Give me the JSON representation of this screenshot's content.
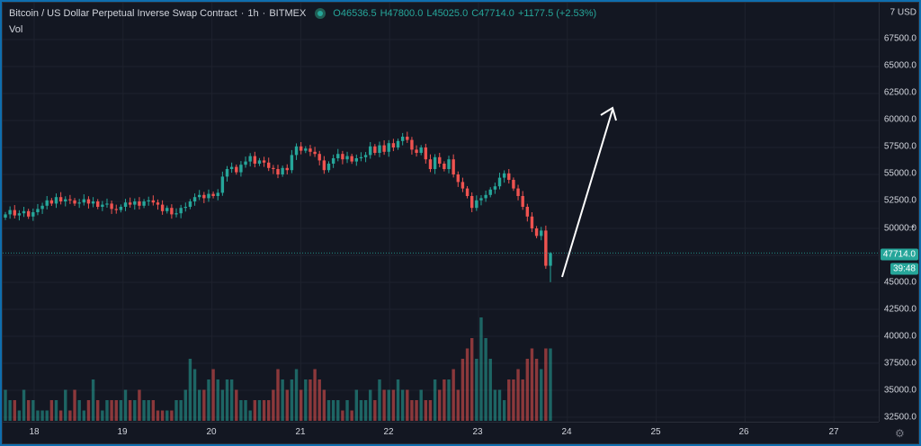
{
  "legend": {
    "title": "Bitcoin / US Dollar Perpetual Inverse Swap Contract",
    "interval": "1h",
    "exchange": "BITMEX",
    "open": "O46536.5",
    "high": "H47800.0",
    "low": "L45025.0",
    "close": "C47714.0",
    "change": "+1177.5 (+2.53%)"
  },
  "volume_label": "Vol",
  "price_scale": {
    "currency": "7 USD",
    "ticks": [
      "67500.0",
      "65000.0",
      "62500.0",
      "60000.0",
      "57500.0",
      "55000.0",
      "52500.0",
      "50000.0",
      "45000.0",
      "42500.0",
      "40000.0",
      "37500.0",
      "35000.0",
      "32500.0"
    ],
    "last_price": "47714.0",
    "countdown": "39:48"
  },
  "time_scale": [
    "18",
    "19",
    "20",
    "21",
    "22",
    "23",
    "24",
    "25",
    "26",
    "27"
  ],
  "colors": {
    "up": "#26a69a",
    "down": "#ef5350",
    "background": "#131722"
  },
  "icons": [
    "settings-gear-icon",
    "scroll-right-icon"
  ],
  "chart_data": {
    "type": "candlestick",
    "ylim": [
      32500,
      70000
    ],
    "x_range": [
      17.7,
      27.5
    ],
    "prices": [
      51300,
      51700,
      51200,
      51400,
      51600,
      51100,
      51500,
      51800,
      52100,
      52600,
      52300,
      52900,
      52500,
      52700,
      52600,
      52300,
      52400,
      52700,
      52300,
      52500,
      52000,
      52200,
      52300,
      51800,
      51700,
      52000,
      52400,
      52200,
      52500,
      52100,
      52500,
      52600,
      52400,
      52200,
      51600,
      51900,
      51300,
      51400,
      51900,
      52000,
      52500,
      52900,
      53100,
      52800,
      53200,
      53000,
      53300,
      54800,
      55500,
      55700,
      55200,
      55900,
      56200,
      56700,
      56000,
      56300,
      56100,
      55600,
      55500,
      55000,
      55600,
      55400,
      56800,
      57600,
      57200,
      57400,
      57100,
      56900,
      56300,
      55400,
      56000,
      56500,
      56900,
      56400,
      56700,
      56200,
      56500,
      56600,
      56800,
      57600,
      57000,
      57700,
      57100,
      57900,
      57500,
      58100,
      58500,
      58200,
      57300,
      57000,
      57500,
      56400,
      55500,
      56600,
      56000,
      55500,
      56400,
      55000,
      54300,
      53700,
      53000,
      51900,
      52600,
      52800,
      53100,
      53600,
      53900,
      54700,
      55100,
      54500,
      53700,
      53000,
      52000,
      51100,
      50000,
      49300,
      49800,
      46536.5,
      47714
    ],
    "volumes": [
      0.3,
      0.2,
      0.2,
      0.1,
      0.3,
      0.2,
      0.2,
      0.1,
      0.1,
      0.1,
      0.2,
      0.2,
      0.1,
      0.3,
      0.1,
      0.3,
      0.2,
      0.1,
      0.2,
      0.4,
      0.2,
      0.1,
      0.2,
      0.2,
      0.2,
      0.2,
      0.3,
      0.2,
      0.2,
      0.3,
      0.2,
      0.2,
      0.2,
      0.1,
      0.1,
      0.1,
      0.1,
      0.2,
      0.2,
      0.3,
      0.6,
      0.5,
      0.3,
      0.3,
      0.4,
      0.5,
      0.4,
      0.3,
      0.4,
      0.4,
      0.3,
      0.2,
      0.2,
      0.1,
      0.2,
      0.2,
      0.2,
      0.2,
      0.3,
      0.5,
      0.4,
      0.3,
      0.4,
      0.5,
      0.3,
      0.4,
      0.4,
      0.5,
      0.4,
      0.3,
      0.2,
      0.2,
      0.2,
      0.1,
      0.2,
      0.1,
      0.3,
      0.2,
      0.2,
      0.3,
      0.2,
      0.4,
      0.3,
      0.3,
      0.3,
      0.4,
      0.3,
      0.3,
      0.2,
      0.2,
      0.3,
      0.2,
      0.2,
      0.4,
      0.3,
      0.4,
      0.4,
      0.5,
      0.3,
      0.6,
      0.7,
      0.8,
      0.6,
      1.0,
      0.8,
      0.6,
      0.3,
      0.3,
      0.2,
      0.4,
      0.4,
      0.5,
      0.4,
      0.6,
      0.7,
      0.6,
      0.5,
      0.7,
      0.7
    ]
  }
}
